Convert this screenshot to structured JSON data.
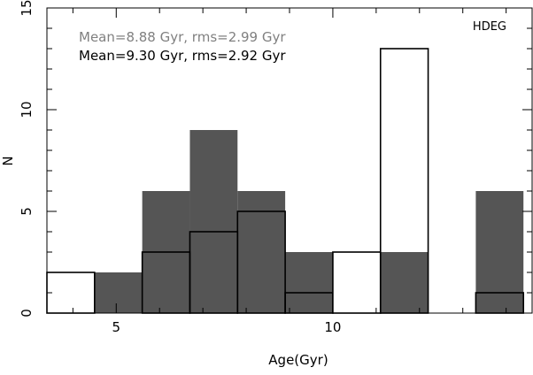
{
  "chart_data": {
    "type": "bar",
    "xlabel": "Age(Gyr)",
    "ylabel": "N",
    "xlim": [
      3.4,
      14.6
    ],
    "ylim": [
      0,
      15
    ],
    "x_ticks": [
      5,
      10
    ],
    "y_ticks": [
      0,
      5,
      10,
      15
    ],
    "panel_label": "HDEG",
    "bin_width": 1.1,
    "bin_edges": [
      3.4,
      4.5,
      5.6,
      6.7,
      7.8,
      8.9,
      10.0,
      11.1,
      12.2,
      13.3,
      14.4
    ],
    "series": [
      {
        "values": [
          0,
          2,
          6,
          9,
          6,
          3,
          0,
          3,
          0,
          6
        ],
        "fill": "#555555",
        "stroke": "none",
        "stat_text": "Mean=8.88 Gyr, rms=2.99 Gyr",
        "text_color": "#808080"
      },
      {
        "values": [
          2,
          0,
          3,
          4,
          5,
          1,
          3,
          13,
          0,
          1
        ],
        "fill": "#ffffff",
        "fill_when_overlapping": "none",
        "stroke": "#000000",
        "stat_text": "Mean=9.30 Gyr, rms=2.92 Gyr",
        "text_color": "#000000"
      }
    ]
  }
}
